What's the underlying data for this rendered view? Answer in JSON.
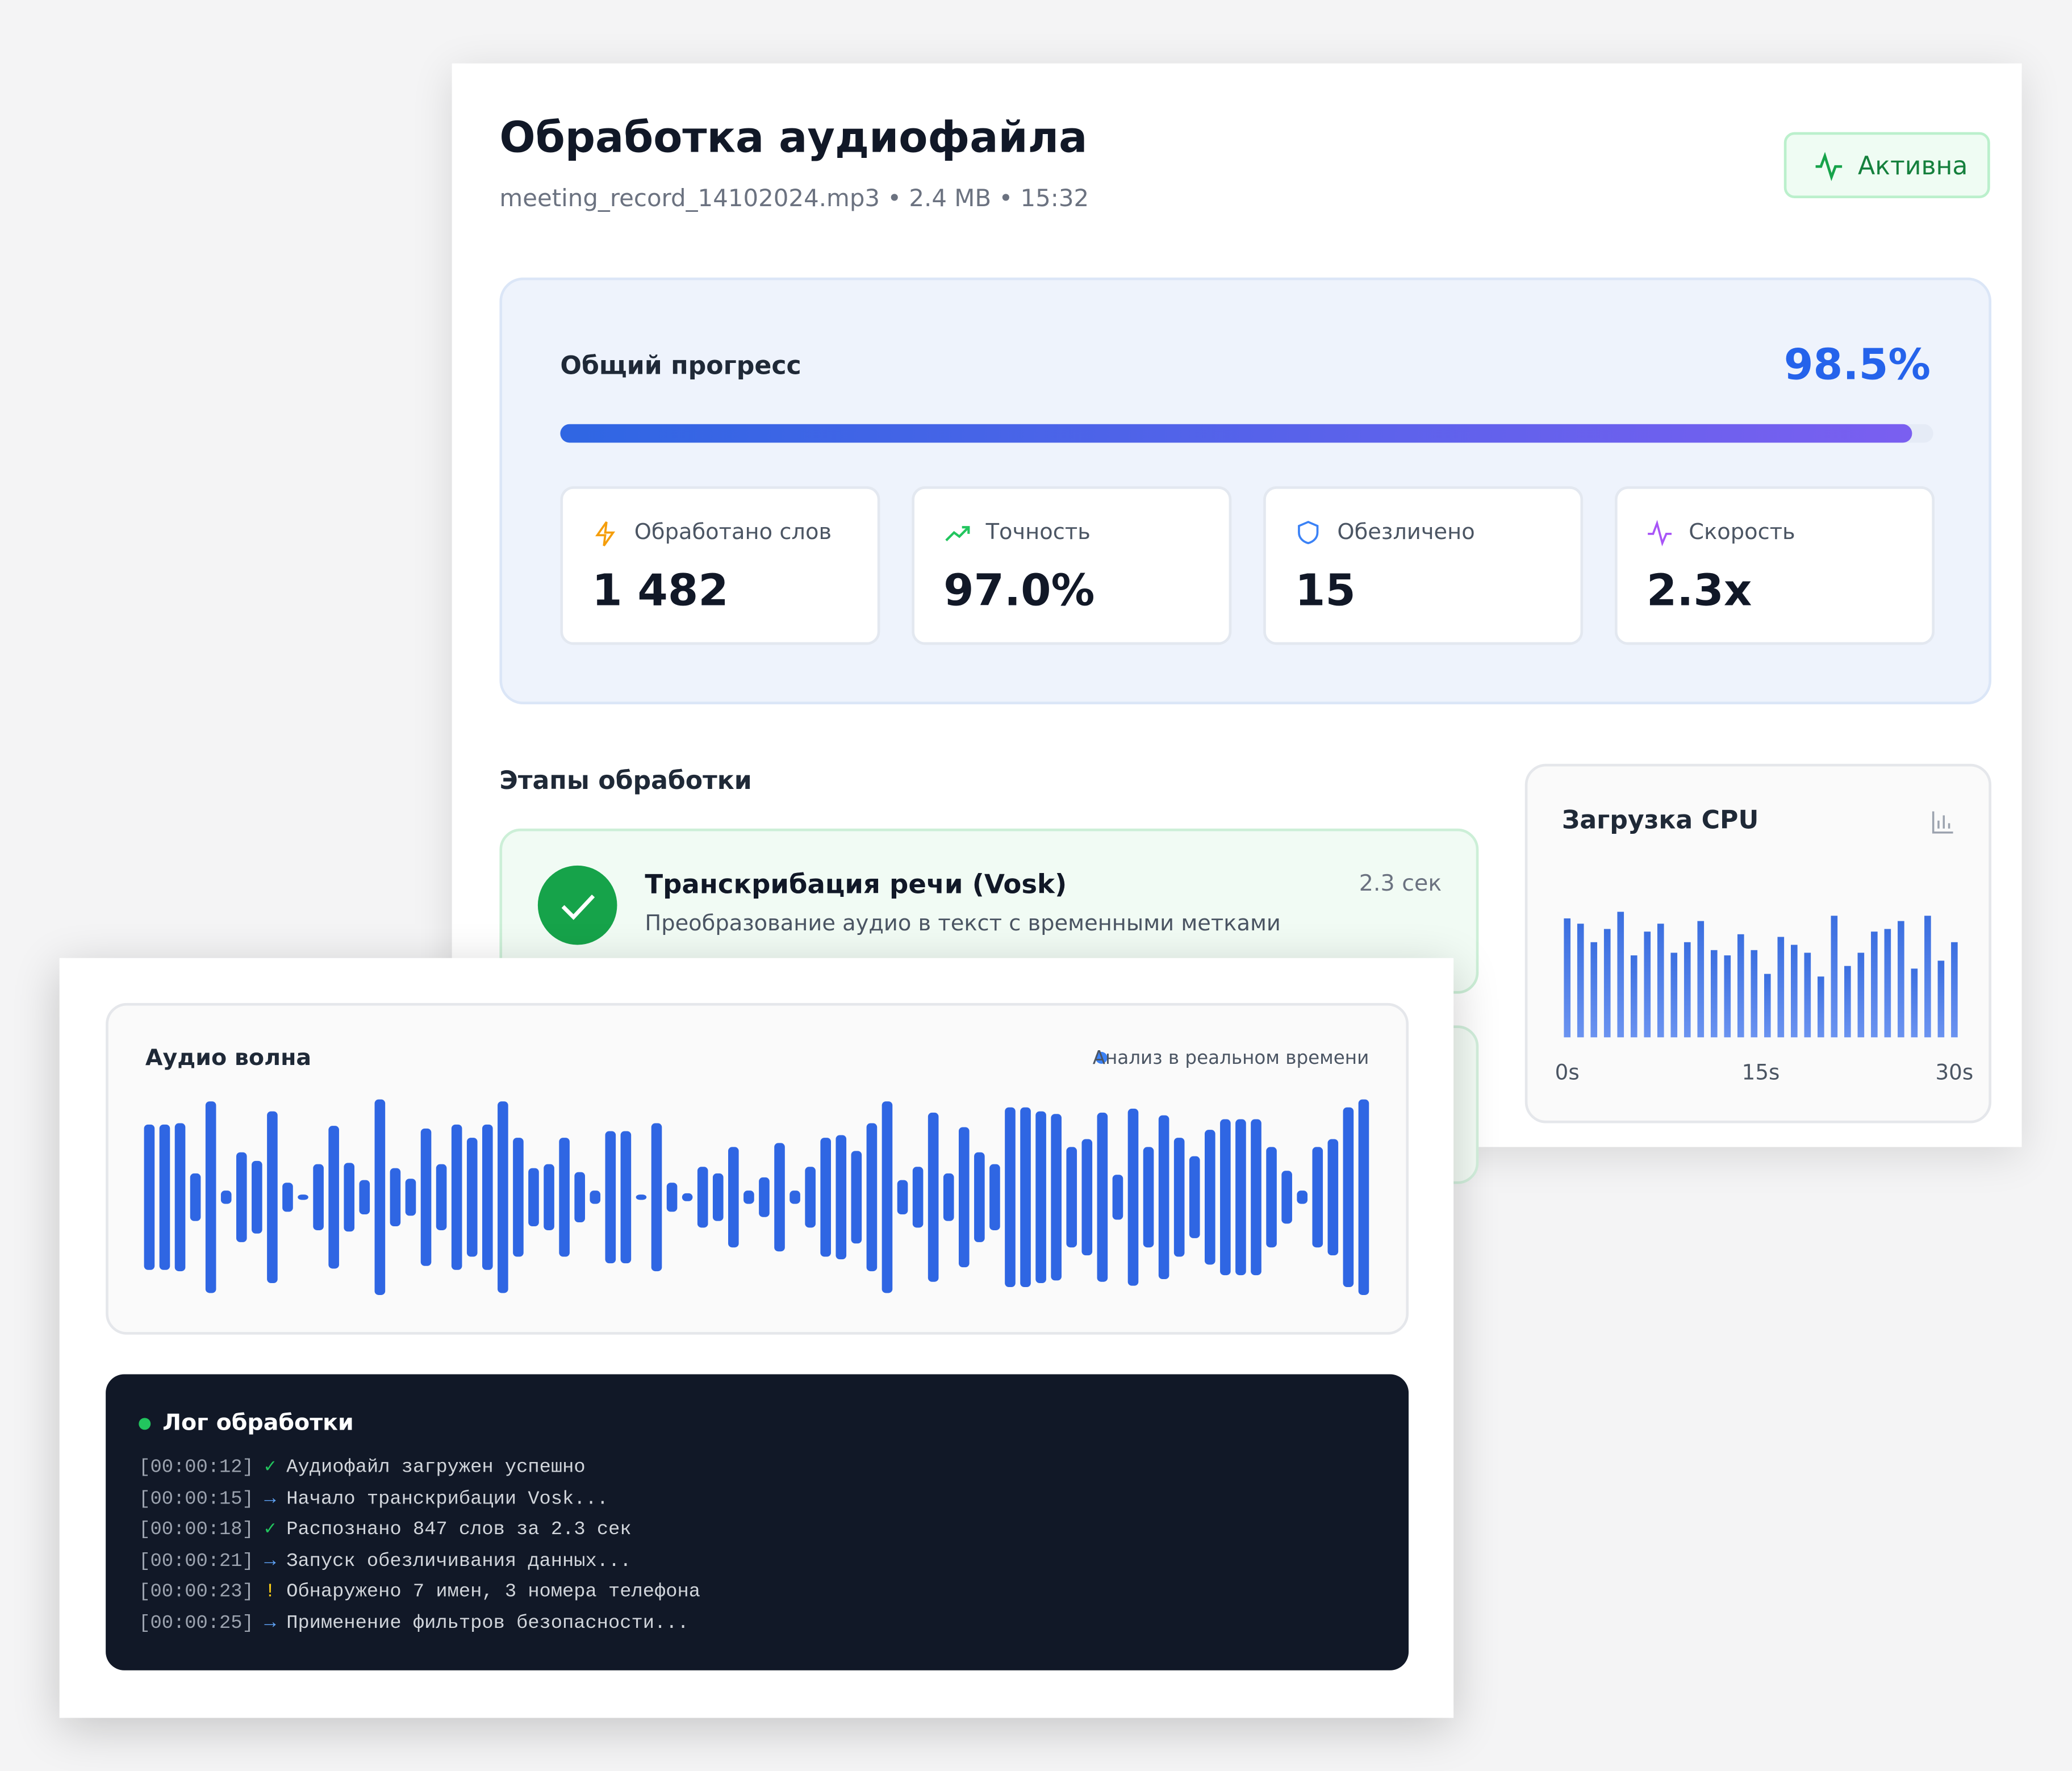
{
  "header": {
    "title": "Обработка аудиофайла",
    "subtitle": "meeting_record_14102024.mp3 • 2.4 MB • 15:32",
    "status": "Активна"
  },
  "progress": {
    "label": "Общий прогресс",
    "value": 98.5,
    "value_label": "98.5%"
  },
  "stats": [
    {
      "label": "Обработано слов",
      "value": "1 482"
    },
    {
      "label": "Точность",
      "value": "97.0%"
    },
    {
      "label": "Обезличено",
      "value": "15"
    },
    {
      "label": "Скорость",
      "value": "2.3x"
    }
  ],
  "stages": {
    "title": "Этапы обработки",
    "items": [
      {
        "title": "Транскрибация речи (Vosk)",
        "description": "Преобразование аудио в текст с временными метками",
        "time": "2.3 сек"
      }
    ]
  },
  "cpu": {
    "title": "Загрузка CPU",
    "type": "bar",
    "color": "#3b6fe0",
    "values": [
      90,
      86,
      72,
      82,
      95,
      62,
      80,
      86,
      64,
      72,
      88,
      66,
      62,
      78,
      66,
      48,
      76,
      70,
      64,
      46,
      92,
      54,
      64,
      80,
      82,
      88,
      52,
      92,
      58,
      72
    ],
    "ylim": [
      0,
      100
    ],
    "xlim": [
      0,
      30
    ],
    "xticks": [
      {
        "value": 0,
        "label": "0s"
      },
      {
        "value": 15,
        "label": "15s"
      },
      {
        "value": 30,
        "label": "30s"
      }
    ]
  },
  "waveform": {
    "title": "Аудио волна",
    "legend": "Анализ в реальном времени",
    "type": "bar",
    "color": "#2f66e3",
    "ylim": [
      0,
      150
    ],
    "values": [
      110,
      110,
      112,
      36,
      145,
      10,
      68,
      55,
      130,
      22,
      4,
      50,
      108,
      52,
      26,
      148,
      44,
      28,
      104,
      50,
      110,
      90,
      110,
      145,
      90,
      44,
      50,
      90,
      38,
      10,
      100,
      100,
      4,
      112,
      22,
      6,
      46,
      36,
      76,
      10,
      30,
      82,
      10,
      46,
      90,
      94,
      70,
      112,
      145,
      26,
      46,
      128,
      36,
      106,
      68,
      50,
      136,
      136,
      130,
      126,
      76,
      88,
      128,
      34,
      134,
      76,
      124,
      90,
      62,
      102,
      118,
      118,
      118,
      76,
      40,
      10,
      76,
      88,
      136,
      148
    ]
  },
  "log": {
    "title": "Лог обработки",
    "entries": [
      {
        "time": "[00:00:12]",
        "icon": "✓",
        "color": "#22c55e",
        "text": "Аудиофайл загружен успешно"
      },
      {
        "time": "[00:00:15]",
        "icon": "→",
        "color": "#60a5fa",
        "text": "Начало транскрибации Vosk..."
      },
      {
        "time": "[00:00:18]",
        "icon": "✓",
        "color": "#22c55e",
        "text": "Распознано 847 слов за 2.3 сек"
      },
      {
        "time": "[00:00:21]",
        "icon": "→",
        "color": "#60a5fa",
        "text": "Запуск обезличивания данных..."
      },
      {
        "time": "[00:00:23]",
        "icon": "!",
        "color": "#facc15",
        "text": "Обнаружено 7 имен, 3 номера телефона"
      },
      {
        "time": "[00:00:25]",
        "icon": "→",
        "color": "#60a5fa",
        "text": "Применение фильтров безопасности..."
      }
    ]
  }
}
